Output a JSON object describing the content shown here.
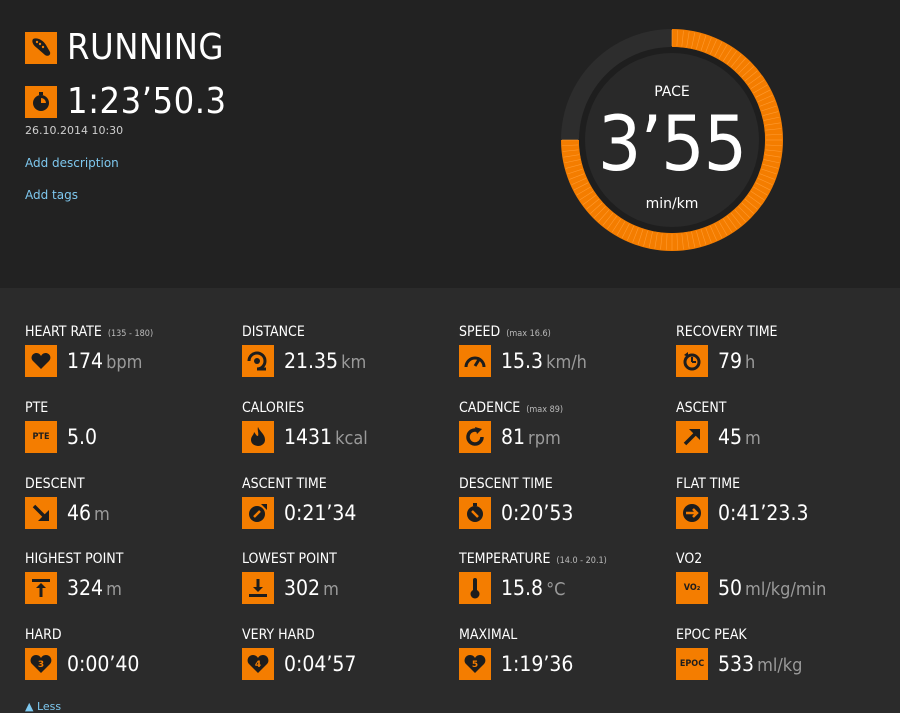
{
  "header": {
    "sport": "RUNNING",
    "duration": "1:23’50.3",
    "date": "26.10.2014 10:30",
    "add_description": "Add description",
    "add_tags": "Add tags"
  },
  "pace": {
    "label": "PACE",
    "value": "3’55",
    "unit": "min/km",
    "fill_fraction": 0.75
  },
  "colors": {
    "accent": "#f47d00",
    "panel": "#222222",
    "background": "#2b2b2b",
    "link": "#7ec8ef"
  },
  "stats": [
    {
      "label": "HEART RATE",
      "sub": "(135 - 180)",
      "value": "174",
      "unit": "bpm",
      "icon": "heart-icon"
    },
    {
      "label": "DISTANCE",
      "sub": "",
      "value": "21.35",
      "unit": "km",
      "icon": "distance-icon"
    },
    {
      "label": "SPEED",
      "sub": "(max 16.6)",
      "value": "15.3",
      "unit": "km/h",
      "icon": "speedometer-icon"
    },
    {
      "label": "RECOVERY TIME",
      "sub": "",
      "value": "79",
      "unit": "h",
      "icon": "recovery-icon"
    },
    {
      "label": "PTE",
      "sub": "",
      "value": "5.0",
      "unit": "",
      "icon": "pte-icon",
      "icon_text": "PTE"
    },
    {
      "label": "CALORIES",
      "sub": "",
      "value": "1431",
      "unit": "kcal",
      "icon": "flame-icon"
    },
    {
      "label": "CADENCE",
      "sub": "(max 89)",
      "value": "81",
      "unit": "rpm",
      "icon": "cadence-icon"
    },
    {
      "label": "ASCENT",
      "sub": "",
      "value": "45",
      "unit": "m",
      "icon": "arrow-up-right-icon"
    },
    {
      "label": "DESCENT",
      "sub": "",
      "value": "46",
      "unit": "m",
      "icon": "arrow-down-right-icon"
    },
    {
      "label": "ASCENT TIME",
      "sub": "",
      "value": "0:21’34",
      "unit": "",
      "icon": "ascent-time-icon"
    },
    {
      "label": "DESCENT TIME",
      "sub": "",
      "value": "0:20’53",
      "unit": "",
      "icon": "descent-time-icon"
    },
    {
      "label": "FLAT TIME",
      "sub": "",
      "value": "0:41’23.3",
      "unit": "",
      "icon": "flat-time-icon"
    },
    {
      "label": "HIGHEST POINT",
      "sub": "",
      "value": "324",
      "unit": "m",
      "icon": "highest-point-icon"
    },
    {
      "label": "LOWEST POINT",
      "sub": "",
      "value": "302",
      "unit": "m",
      "icon": "lowest-point-icon"
    },
    {
      "label": "TEMPERATURE",
      "sub": "(14.0 - 20.1)",
      "value": "15.8",
      "unit": "°C",
      "icon": "thermometer-icon"
    },
    {
      "label": "VO2",
      "sub": "",
      "value": "50",
      "unit": "ml/kg/min",
      "icon": "vo2-icon",
      "icon_text": "VO₂"
    },
    {
      "label": "HARD",
      "sub": "",
      "value": "0:00’40",
      "unit": "",
      "icon": "heart-zone-3-icon",
      "icon_text": "3"
    },
    {
      "label": "VERY HARD",
      "sub": "",
      "value": "0:04’57",
      "unit": "",
      "icon": "heart-zone-4-icon",
      "icon_text": "4"
    },
    {
      "label": "MAXIMAL",
      "sub": "",
      "value": "1:19’36",
      "unit": "",
      "icon": "heart-zone-5-icon",
      "icon_text": "5"
    },
    {
      "label": "EPOC PEAK",
      "sub": "",
      "value": "533",
      "unit": "ml/kg",
      "icon": "epoc-icon",
      "icon_text": "EPOC"
    }
  ],
  "less_link": "Less"
}
